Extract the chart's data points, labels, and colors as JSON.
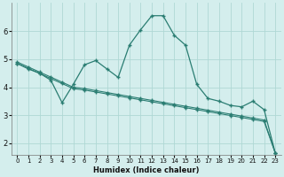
{
  "xlabel": "Humidex (Indice chaleur)",
  "bg_color": "#d4eeed",
  "grid_color": "#afd8d5",
  "line_color": "#2a7d72",
  "xlim": [
    -0.5,
    23.5
  ],
  "ylim": [
    1.6,
    7.0
  ],
  "yticks": [
    2,
    3,
    4,
    5,
    6
  ],
  "xticks": [
    0,
    1,
    2,
    3,
    4,
    5,
    6,
    7,
    8,
    9,
    10,
    11,
    12,
    13,
    14,
    15,
    16,
    17,
    18,
    19,
    20,
    21,
    22,
    23
  ],
  "series": {
    "line_upper_zigzag": {
      "x": [
        0,
        1,
        2,
        3,
        4,
        5,
        6,
        7,
        8,
        9,
        10,
        11,
        12,
        13,
        14,
        15,
        16,
        17,
        18,
        19,
        20,
        21,
        22,
        23
      ],
      "y": [
        4.85,
        4.65,
        4.5,
        4.25,
        3.45,
        4.1,
        4.8,
        4.95,
        4.65,
        4.35,
        5.5,
        6.05,
        6.55,
        6.55,
        5.85,
        5.5,
        4.1,
        3.6,
        3.5,
        3.35,
        3.3,
        3.5,
        3.2,
        1.65
      ]
    },
    "line_diagonal_high": {
      "x": [
        0,
        4,
        22,
        23
      ],
      "y": [
        4.85,
        4.2,
        3.55,
        1.65
      ]
    },
    "line_diagonal_low": {
      "x": [
        0,
        23
      ],
      "y": [
        4.85,
        1.65
      ]
    },
    "line_short_peak": {
      "x": [
        0,
        1,
        2,
        3,
        4,
        5,
        6,
        7,
        8,
        9,
        10,
        11,
        12,
        13,
        14,
        15,
        16,
        17,
        18,
        19,
        20,
        21,
        22,
        23
      ],
      "y": [
        4.9,
        4.7,
        4.55,
        4.35,
        4.15,
        4.1,
        4.65,
        4.5,
        4.45,
        4.4,
        5.35,
        6.05,
        6.6,
        6.55,
        5.3,
        5.05,
        4.0,
        3.6,
        3.5,
        3.3,
        3.3,
        3.5,
        3.2,
        1.65
      ]
    }
  },
  "line_straight1": {
    "x": [
      0,
      1,
      2,
      3,
      4,
      5,
      6,
      7,
      8,
      9,
      10,
      11,
      12,
      13,
      14,
      15,
      16,
      17,
      18,
      19,
      20,
      21,
      22,
      23
    ],
    "y": [
      4.9,
      4.72,
      4.54,
      4.36,
      4.18,
      4.0,
      3.95,
      3.88,
      3.81,
      3.74,
      3.67,
      3.6,
      3.53,
      3.46,
      3.39,
      3.32,
      3.25,
      3.18,
      3.11,
      3.04,
      2.97,
      2.9,
      2.83,
      1.65
    ]
  },
  "line_straight2": {
    "x": [
      0,
      1,
      2,
      3,
      4,
      5,
      6,
      7,
      8,
      9,
      10,
      11,
      12,
      13,
      14,
      15,
      16,
      17,
      18,
      19,
      20,
      21,
      22,
      23
    ],
    "y": [
      4.85,
      4.67,
      4.49,
      4.31,
      4.13,
      3.95,
      3.9,
      3.83,
      3.76,
      3.69,
      3.62,
      3.55,
      3.48,
      3.41,
      3.34,
      3.27,
      3.2,
      3.13,
      3.06,
      2.99,
      2.92,
      2.85,
      2.78,
      1.65
    ]
  }
}
